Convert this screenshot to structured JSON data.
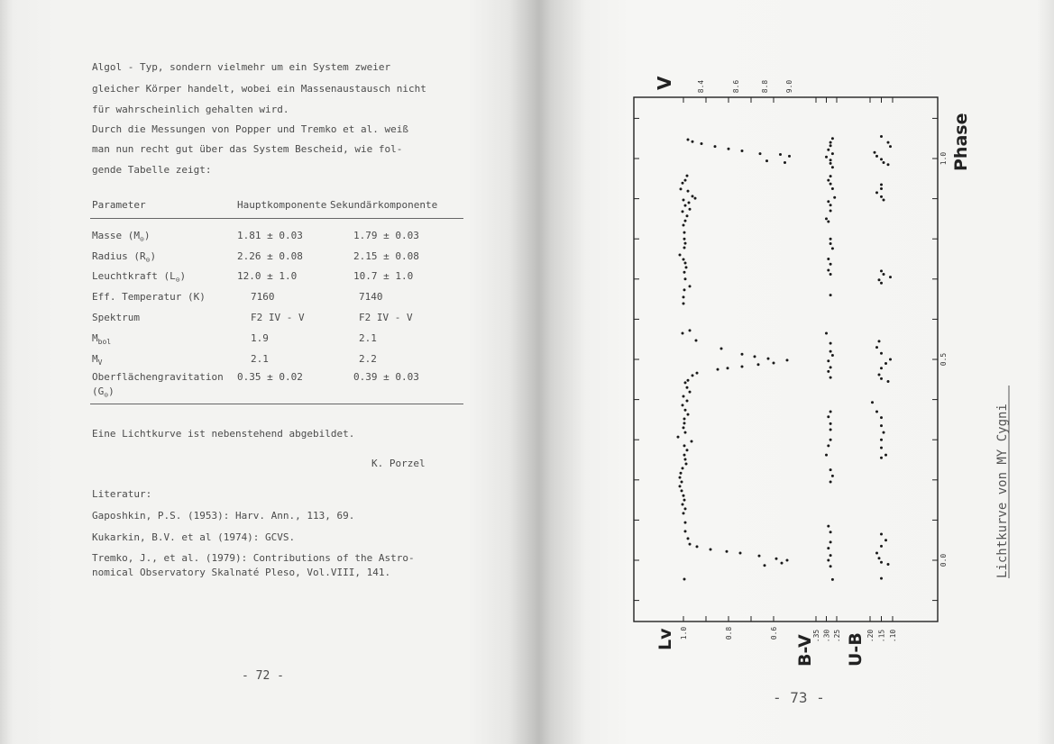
{
  "left_page": {
    "paragraph_lines": [
      "Algol - Typ, sondern vielmehr um ein System zweier",
      "gleicher Körper handelt, wobei ein Massenaustausch nicht",
      "für wahrscheinlich gehalten wird.",
      "Durch die Messungen von Popper und Tremko et al. weiß",
      "man nun recht gut über das System Bescheid, wie fol-",
      "gende Tabelle zeigt:"
    ],
    "table": {
      "headers": [
        "Parameter",
        "Hauptkomponente",
        "Sekundärkomponente"
      ],
      "rows": [
        {
          "name": "Masse (M",
          "sub": "⊙",
          "suffix": ")",
          "primary": "1.81 ± 0.03",
          "secondary": "1.79 ± 0.03"
        },
        {
          "name": "Radius (R",
          "sub": "⊙",
          "suffix": ")",
          "primary": "2.26 ± 0.08",
          "secondary": "2.15 ± 0.08"
        },
        {
          "name": "Leuchtkraft (L",
          "sub": "⊙",
          "suffix": ")",
          "primary": "12.0 ± 1.0",
          "secondary": "10.7 ± 1.0"
        },
        {
          "name": "Eff. Temperatur (K)",
          "sub": "",
          "suffix": "",
          "primary": "7160",
          "secondary": "7140"
        },
        {
          "name": "Spektrum",
          "sub": "",
          "suffix": "",
          "primary": "F2 IV - V",
          "secondary": "F2 IV - V"
        },
        {
          "name": "M",
          "sub": "bol",
          "suffix": "",
          "primary": "1.9",
          "secondary": "2.1"
        },
        {
          "name": "M",
          "sub": "V",
          "suffix": "",
          "primary": "2.1",
          "secondary": "2.2"
        },
        {
          "name": "Oberflächengravitation",
          "sub": "",
          "suffix": "",
          "primary": "0.35 ± 0.02",
          "secondary": "0.39 ± 0.03"
        }
      ],
      "last_row_unit": {
        "name": "(G",
        "sub": "⊙",
        "suffix": ")"
      }
    },
    "closing_sentence": "Eine Lichtkurve ist nebenstehend abgebildet.",
    "author": "K. Porzel",
    "literature_heading": "Literatur:",
    "references": [
      "Gaposhkin, P.S. (1953): Harv. Ann., 113, 69.",
      "Kukarkin, B.V. et al (1974): GCVS.",
      "Tremko, J., et al. (1979): Contributions of the Astro-",
      "nomical Observatory Skalnaté Pleso, Vol.VIII, 141."
    ],
    "page_number": "- 72 -"
  },
  "right_page": {
    "caption": "Lichtkurve von MY Cygni",
    "page_number": "- 73 -"
  },
  "chart_data": {
    "type": "scatter",
    "title": "",
    "orientation": "rotated 90° (phase axis vertical on the right, magnitude axes along the bottom/top)",
    "x_axis": {
      "label": "Phase",
      "range": [
        -0.15,
        1.15
      ],
      "tick_labels": [
        "0.0",
        "0.5",
        "1.0"
      ],
      "tick_step": 0.1
    },
    "top_axis": {
      "label": "V",
      "tick_labels": [
        "8.4",
        "8.6",
        "8.8",
        "9.0"
      ]
    },
    "grid": false,
    "point_color": "#1a1a1a",
    "series": [
      {
        "name": "Lv",
        "axis_tick_labels": [
          "1.0",
          "0.8",
          "0.6"
        ],
        "range": [
          1.05,
          0.58
        ],
        "points": [
          [
            1.047,
            0.98
          ],
          [
            1.042,
            0.96
          ],
          [
            1.037,
            0.92
          ],
          [
            1.03,
            0.86
          ],
          [
            1.024,
            0.8
          ],
          [
            1.019,
            0.74
          ],
          [
            1.012,
            0.66
          ],
          [
            1.01,
            0.57
          ],
          [
            1.006,
            0.53
          ],
          [
            0.994,
            0.63
          ],
          [
            0.99,
            0.55
          ],
          [
            0.957,
            0.984
          ],
          [
            0.946,
            0.992
          ],
          [
            0.939,
            1.004
          ],
          [
            0.924,
            1.012
          ],
          [
            0.919,
            0.98
          ],
          [
            0.906,
            0.96
          ],
          [
            0.901,
            0.948
          ],
          [
            0.897,
            1.0
          ],
          [
            0.89,
            0.976
          ],
          [
            0.883,
            0.992
          ],
          [
            0.874,
            0.972
          ],
          [
            0.868,
            1.004
          ],
          [
            0.857,
            0.984
          ],
          [
            0.845,
            0.992
          ],
          [
            0.834,
            1.0
          ],
          [
            0.816,
            0.996
          ],
          [
            0.8,
            0.996
          ],
          [
            0.789,
            0.992
          ],
          [
            0.778,
            0.996
          ],
          [
            0.76,
            1.016
          ],
          [
            0.749,
            1.0
          ],
          [
            0.74,
            0.992
          ],
          [
            0.729,
            0.988
          ],
          [
            0.717,
            0.996
          ],
          [
            0.7,
            0.992
          ],
          [
            0.682,
            0.972
          ],
          [
            0.673,
            0.996
          ],
          [
            0.655,
            1.0
          ],
          [
            0.639,
            1.0
          ],
          [
            0.572,
            0.972
          ],
          [
            0.565,
            1.004
          ],
          [
            0.547,
            0.944
          ],
          [
            0.527,
            0.832
          ],
          [
            0.513,
            0.74
          ],
          [
            0.507,
            0.684
          ],
          [
            0.502,
            0.624
          ],
          [
            0.498,
            0.54
          ],
          [
            0.491,
            0.6
          ],
          [
            0.487,
            0.668
          ],
          [
            0.482,
            0.74
          ],
          [
            0.478,
            0.804
          ],
          [
            0.475,
            0.848
          ],
          [
            0.466,
            0.94
          ],
          [
            0.46,
            0.96
          ],
          [
            0.448,
            0.98
          ],
          [
            0.442,
            0.992
          ],
          [
            0.43,
            0.984
          ],
          [
            0.419,
            0.972
          ],
          [
            0.408,
            1.0
          ],
          [
            0.397,
            0.984
          ],
          [
            0.386,
            1.004
          ],
          [
            0.374,
            0.992
          ],
          [
            0.363,
            0.98
          ],
          [
            0.352,
            0.996
          ],
          [
            0.341,
            0.996
          ],
          [
            0.33,
            1.0
          ],
          [
            0.318,
            0.992
          ],
          [
            0.307,
            1.024
          ],
          [
            0.296,
            0.964
          ],
          [
            0.285,
            0.996
          ],
          [
            0.274,
            0.984
          ],
          [
            0.262,
            0.996
          ],
          [
            0.251,
            0.992
          ],
          [
            0.24,
            0.988
          ],
          [
            0.229,
            1.004
          ],
          [
            0.217,
            1.012
          ],
          [
            0.206,
            1.016
          ],
          [
            0.195,
            1.008
          ],
          [
            0.184,
            1.016
          ],
          [
            0.173,
            1.008
          ],
          [
            0.161,
            1.0
          ],
          [
            0.15,
            0.996
          ],
          [
            0.139,
            1.004
          ],
          [
            0.128,
            0.992
          ],
          [
            0.117,
            1.0
          ],
          [
            0.094,
            0.992
          ],
          [
            0.072,
            0.992
          ],
          [
            0.054,
            0.98
          ],
          [
            0.04,
            0.972
          ],
          [
            0.034,
            0.94
          ],
          [
            0.027,
            0.88
          ],
          [
            0.022,
            0.808
          ],
          [
            0.018,
            0.748
          ],
          [
            0.011,
            0.664
          ],
          [
            0.004,
            0.588
          ],
          [
            0.0,
            0.54
          ],
          [
            -0.007,
            0.564
          ],
          [
            -0.013,
            0.64
          ],
          [
            -0.047,
            0.996
          ]
        ]
      },
      {
        "name": "B-V",
        "axis_tick_labels": [
          ".35",
          ".30",
          ".25"
        ],
        "points": [
          [
            1.05,
            0.27
          ],
          [
            1.04,
            0.28
          ],
          [
            1.032,
            0.28
          ],
          [
            1.022,
            0.29
          ],
          [
            1.012,
            0.27
          ],
          [
            1.004,
            0.3
          ],
          [
            0.996,
            0.28
          ],
          [
            0.988,
            0.28
          ],
          [
            0.978,
            0.27
          ],
          [
            0.956,
            0.28
          ],
          [
            0.946,
            0.29
          ],
          [
            0.937,
            0.28
          ],
          [
            0.925,
            0.27
          ],
          [
            0.903,
            0.26
          ],
          [
            0.893,
            0.29
          ],
          [
            0.884,
            0.28
          ],
          [
            0.87,
            0.28
          ],
          [
            0.85,
            0.3
          ],
          [
            0.843,
            0.29
          ],
          [
            0.8,
            0.28
          ],
          [
            0.788,
            0.28
          ],
          [
            0.776,
            0.27
          ],
          [
            0.75,
            0.29
          ],
          [
            0.737,
            0.28
          ],
          [
            0.722,
            0.29
          ],
          [
            0.712,
            0.28
          ],
          [
            0.66,
            0.28
          ],
          [
            0.565,
            0.3
          ],
          [
            0.54,
            0.28
          ],
          [
            0.52,
            0.28
          ],
          [
            0.51,
            0.27
          ],
          [
            0.496,
            0.29
          ],
          [
            0.48,
            0.28
          ],
          [
            0.47,
            0.29
          ],
          [
            0.455,
            0.28
          ],
          [
            0.37,
            0.28
          ],
          [
            0.357,
            0.29
          ],
          [
            0.34,
            0.28
          ],
          [
            0.325,
            0.28
          ],
          [
            0.3,
            0.28
          ],
          [
            0.285,
            0.29
          ],
          [
            0.262,
            0.3
          ],
          [
            0.225,
            0.28
          ],
          [
            0.21,
            0.27
          ],
          [
            0.195,
            0.28
          ],
          [
            0.085,
            0.29
          ],
          [
            0.07,
            0.28
          ],
          [
            0.045,
            0.28
          ],
          [
            0.03,
            0.29
          ],
          [
            0.012,
            0.28
          ],
          [
            0.0,
            0.29
          ],
          [
            -0.015,
            0.28
          ],
          [
            -0.048,
            0.27
          ]
        ]
      },
      {
        "name": "U-B",
        "axis_tick_labels": [
          ".20",
          ".15",
          ".10"
        ],
        "points": [
          [
            1.055,
            0.15
          ],
          [
            1.04,
            0.12
          ],
          [
            1.03,
            0.11
          ],
          [
            1.015,
            0.18
          ],
          [
            1.006,
            0.17
          ],
          [
            0.998,
            0.15
          ],
          [
            0.99,
            0.14
          ],
          [
            0.985,
            0.12
          ],
          [
            0.935,
            0.15
          ],
          [
            0.925,
            0.15
          ],
          [
            0.915,
            0.17
          ],
          [
            0.905,
            0.15
          ],
          [
            0.897,
            0.14
          ],
          [
            0.72,
            0.15
          ],
          [
            0.712,
            0.14
          ],
          [
            0.705,
            0.11
          ],
          [
            0.698,
            0.16
          ],
          [
            0.69,
            0.15
          ],
          [
            0.545,
            0.16
          ],
          [
            0.53,
            0.17
          ],
          [
            0.515,
            0.15
          ],
          [
            0.5,
            0.11
          ],
          [
            0.49,
            0.13
          ],
          [
            0.478,
            0.15
          ],
          [
            0.462,
            0.16
          ],
          [
            0.452,
            0.15
          ],
          [
            0.445,
            0.12
          ],
          [
            0.393,
            0.19
          ],
          [
            0.37,
            0.17
          ],
          [
            0.355,
            0.15
          ],
          [
            0.335,
            0.15
          ],
          [
            0.318,
            0.14
          ],
          [
            0.3,
            0.15
          ],
          [
            0.28,
            0.15
          ],
          [
            0.262,
            0.13
          ],
          [
            0.255,
            0.15
          ],
          [
            0.065,
            0.15
          ],
          [
            0.05,
            0.13
          ],
          [
            0.035,
            0.15
          ],
          [
            0.018,
            0.17
          ],
          [
            0.005,
            0.16
          ],
          [
            -0.005,
            0.15
          ],
          [
            -0.01,
            0.12
          ],
          [
            -0.045,
            0.15
          ]
        ]
      }
    ]
  }
}
